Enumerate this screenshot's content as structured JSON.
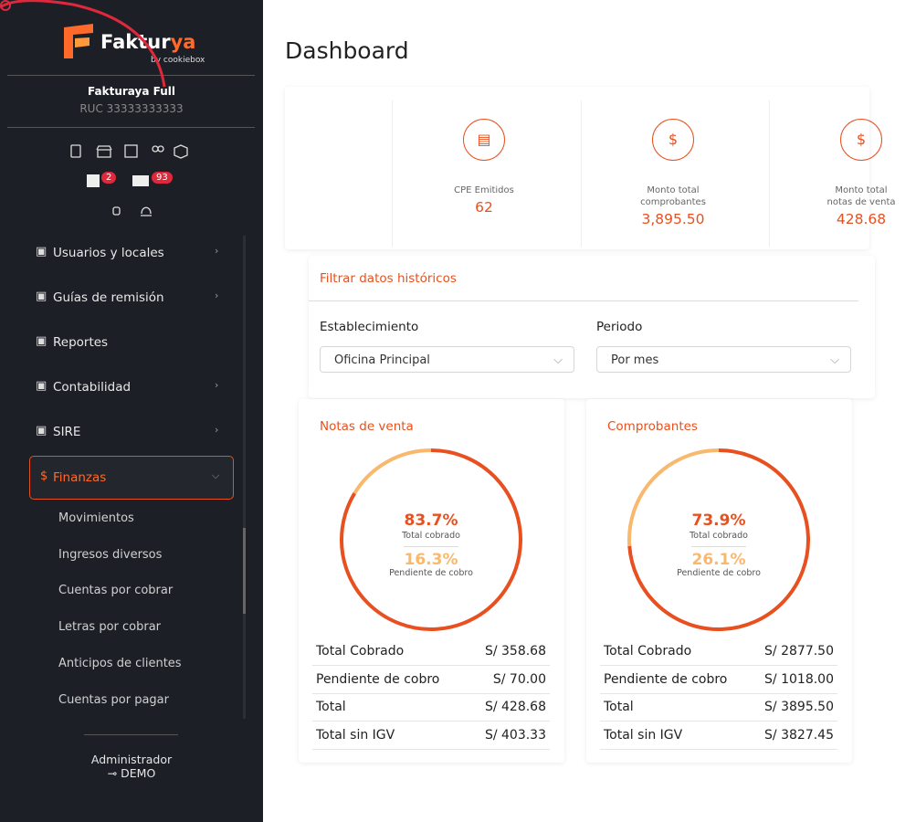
{
  "sidebar": {
    "brand": "Faktur",
    "brand_accent": "ya",
    "brand_sub": "by cookiebox",
    "company": "Fakturaya Full",
    "ruc": "RUC 33333333333",
    "badges": [
      "2",
      "93"
    ],
    "menu": [
      "Usuarios y locales",
      "Guías de remisión",
      "Reportes",
      "Contabilidad",
      "SIRE",
      "Finanzas"
    ],
    "submenu": [
      "Movimientos",
      "Ingresos diversos",
      "Cuentas por cobrar",
      "Letras por cobrar",
      "Anticipos de clientes",
      "Cuentas por pagar"
    ],
    "user_role": "Administrador",
    "user_name": "DEMO"
  },
  "main": {
    "title": "Dashboard",
    "stats": [
      {
        "label": "CPE Emitidos",
        "value": "62"
      },
      {
        "label": "Monto total comprobantes",
        "value": "3,895.50"
      },
      {
        "label": "Monto total notas de venta",
        "value": "428.68"
      }
    ],
    "filter": {
      "title": "Filtrar datos históricos",
      "fields": [
        {
          "label": "Establecimiento",
          "value": "Oficina Principal"
        },
        {
          "label": "Periodo",
          "value": "Por mes"
        }
      ]
    }
  },
  "chart_data": [
    {
      "type": "pie",
      "title": "Notas de venta",
      "categories": [
        "Total cobrado",
        "Pendiente de cobro"
      ],
      "values": [
        83.7,
        16.3
      ],
      "value_labels": [
        "83.7%",
        "16.3%"
      ],
      "colors": [
        "#e8501f",
        "#f8b96e"
      ],
      "table": [
        [
          "Total Cobrado",
          "S/ 358.68"
        ],
        [
          "Pendiente de cobro",
          "S/ 70.00"
        ],
        [
          "Total",
          "S/ 428.68"
        ],
        [
          "Total sin IGV",
          "S/ 403.33"
        ]
      ]
    },
    {
      "type": "pie",
      "title": "Comprobantes",
      "categories": [
        "Total cobrado",
        "Pendiente de cobro"
      ],
      "values": [
        73.9,
        26.1
      ],
      "value_labels": [
        "73.9%",
        "26.1%"
      ],
      "colors": [
        "#e8501f",
        "#f8b96e"
      ],
      "table": [
        [
          "Total Cobrado",
          "S/ 2877.50"
        ],
        [
          "Pendiente de cobro",
          "S/ 1018.00"
        ],
        [
          "Total",
          "S/ 3895.50"
        ],
        [
          "Total sin IGV",
          "S/ 3827.45"
        ]
      ]
    }
  ]
}
